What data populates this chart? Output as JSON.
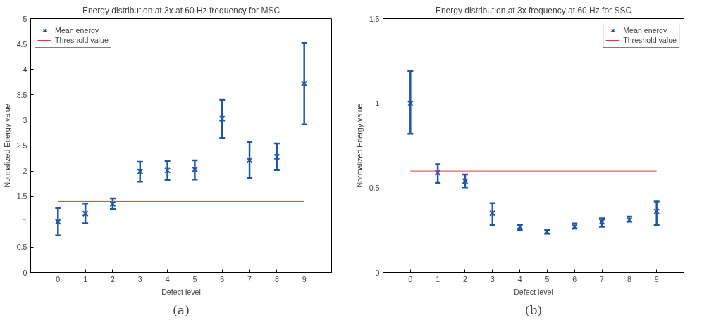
{
  "chart_data": [
    {
      "type": "scatter",
      "title": "Energy distribution at 3x at 60 Hz frequency for MSC",
      "xlabel": "Defect level",
      "ylabel": "Normalized Energy value",
      "annotations": [
        "(a)"
      ],
      "categories": [
        "0",
        "1",
        "2",
        "3",
        "4",
        "5",
        "6",
        "7",
        "8",
        "9"
      ],
      "series": [
        {
          "name": "Mean energy",
          "color": "#1f56a8",
          "values": [
            1.0,
            1.16,
            1.35,
            1.99,
            2.01,
            2.03,
            3.03,
            2.21,
            2.28,
            3.72
          ],
          "errors": [
            [
              0.73,
              1.27
            ],
            [
              0.97,
              1.36
            ],
            [
              1.25,
              1.46
            ],
            [
              1.79,
              2.18
            ],
            [
              1.82,
              2.2
            ],
            [
              1.83,
              2.21
            ],
            [
              2.65,
              3.4
            ],
            [
              1.86,
              2.57
            ],
            [
              2.02,
              2.54
            ],
            [
              2.92,
              4.52
            ]
          ]
        }
      ],
      "ref_lines": [
        {
          "axis": "y",
          "value": 1.4,
          "label": "Threshold value",
          "color": "#e0393e"
        }
      ],
      "ylim": [
        0,
        5
      ],
      "yticks": [
        0,
        0.5,
        1,
        1.5,
        2,
        2.5,
        3,
        3.5,
        4,
        4.5,
        5
      ],
      "grid": false,
      "legend": "top left",
      "marker": "cross"
    },
    {
      "type": "scatter",
      "title": "Energy distribution at 3x frequency at 60 Hz for SSC",
      "xlabel": "Defect level",
      "ylabel": "Normalized Energy value",
      "annotations": [
        "(b)"
      ],
      "categories": [
        "0",
        "1",
        "2",
        "3",
        "4",
        "5",
        "6",
        "7",
        "8",
        "9"
      ],
      "series": [
        {
          "name": "Mean energy",
          "color": "#1f56a8",
          "values": [
            1.0,
            0.59,
            0.54,
            0.35,
            0.27,
            0.24,
            0.27,
            0.3,
            0.31,
            0.36
          ],
          "errors": [
            [
              0.82,
              1.19
            ],
            [
              0.53,
              0.64
            ],
            [
              0.5,
              0.58
            ],
            [
              0.28,
              0.41
            ],
            [
              0.25,
              0.28
            ],
            [
              0.23,
              0.25
            ],
            [
              0.26,
              0.29
            ],
            [
              0.27,
              0.32
            ],
            [
              0.3,
              0.33
            ],
            [
              0.28,
              0.42
            ]
          ]
        }
      ],
      "ref_lines": [
        {
          "axis": "y",
          "value": 0.6,
          "label": "Threshold value",
          "color": "#e0393e"
        }
      ],
      "ylim": [
        0,
        1.5
      ],
      "yticks": [
        0,
        0.5,
        1,
        1.5
      ],
      "grid": false,
      "legend": "top right",
      "marker": "cross"
    }
  ]
}
